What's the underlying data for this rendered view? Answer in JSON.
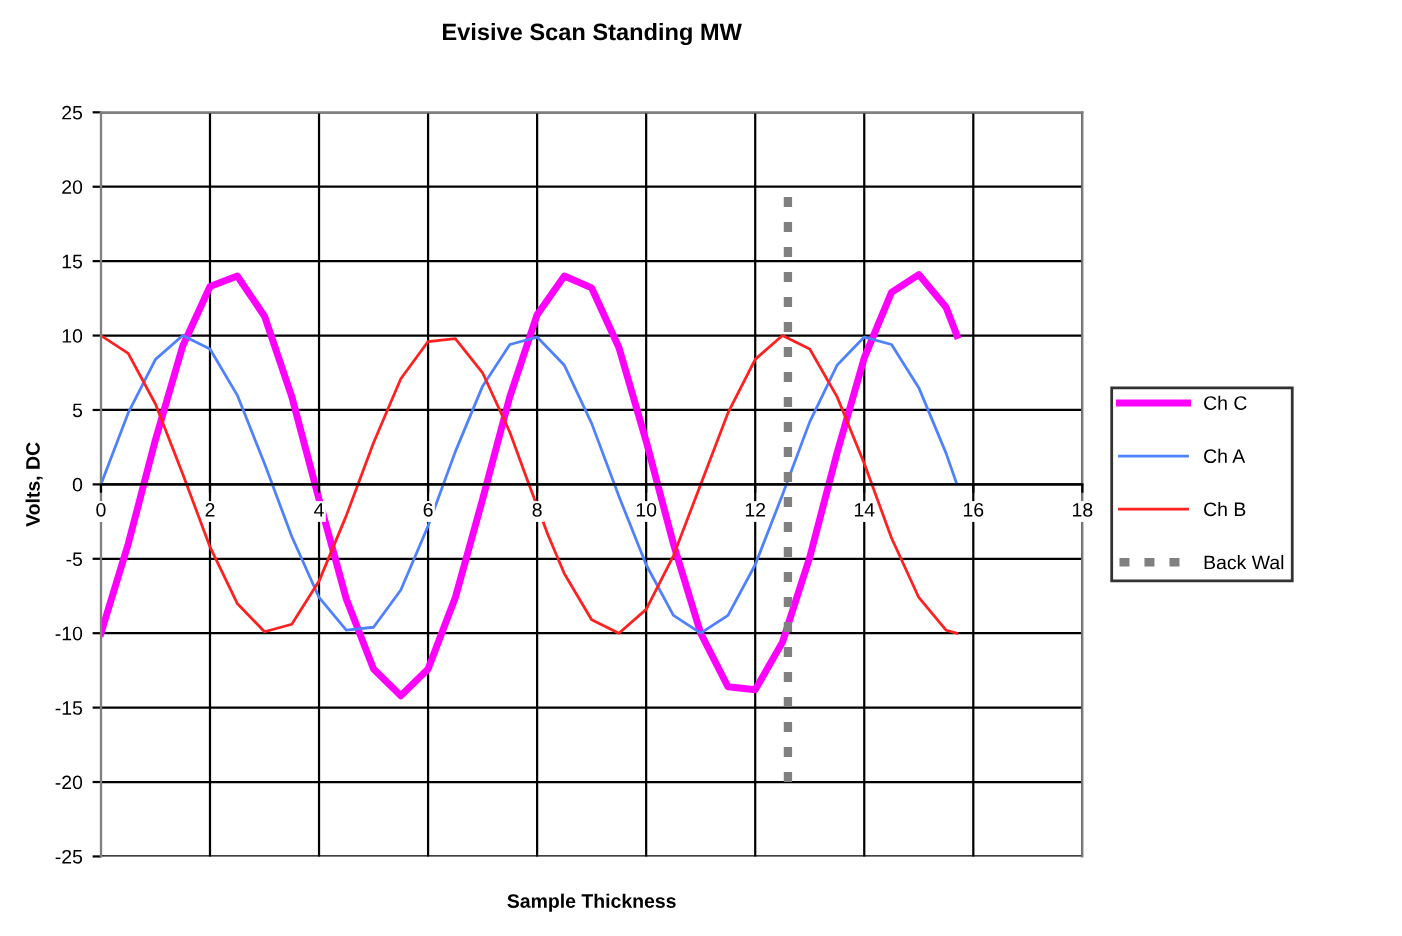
{
  "chart_data": {
    "type": "line",
    "title": "Evisive Scan Standing MW",
    "xlabel": "Sample Thickness",
    "ylabel": "Volts, DC",
    "x": [
      0,
      0.5,
      1,
      1.5,
      2,
      2.5,
      3,
      3.5,
      4,
      4.5,
      5,
      5.5,
      6,
      6.5,
      7,
      7.5,
      8,
      8.5,
      9,
      9.5,
      10,
      10.5,
      11,
      11.5,
      12,
      12.5,
      13,
      13.5,
      14,
      14.5,
      15,
      15.5,
      15.7
    ],
    "series": [
      {
        "name": "Ch C",
        "color": "#ff00ff",
        "values": [
          -10,
          -4.0,
          3.0,
          9.3,
          13.3,
          14.0,
          11.3,
          5.9,
          -1.0,
          -7.7,
          -12.4,
          -14.2,
          -12.4,
          -7.6,
          -1.0,
          5.9,
          11.4,
          14.0,
          13.2,
          9.2,
          2.9,
          -4.0,
          -10.0,
          -13.6,
          -13.8,
          -10.6,
          -4.9,
          2.1,
          8.5,
          12.9,
          14.1,
          11.9,
          10.0
        ]
      },
      {
        "name": "Ch A",
        "color": "#4f81ff",
        "values": [
          0,
          4.8,
          8.4,
          10.0,
          9.1,
          6.0,
          1.4,
          -3.5,
          -7.6,
          -9.8,
          -9.6,
          -7.1,
          -2.8,
          2.2,
          6.6,
          9.4,
          9.9,
          8.0,
          4.1,
          -0.8,
          -5.4,
          -8.8,
          -10.0,
          -8.8,
          -5.4,
          -0.7,
          4.2,
          8.0,
          9.9,
          9.4,
          6.5,
          2.1,
          0
        ]
      },
      {
        "name": "Ch B",
        "color": "#ff2020",
        "x": [
          0,
          0.5,
          1,
          1.5,
          2,
          2.5,
          3,
          3.5,
          4,
          4.5,
          5,
          5.5,
          6,
          6.5,
          7,
          7.5,
          7.8,
          8.2,
          8.5,
          9,
          9.5,
          10,
          10.5,
          11,
          11.5,
          12,
          12.5,
          13,
          13.5,
          14,
          14.5,
          15,
          15.5,
          15.7
        ],
        "values": [
          10,
          8.8,
          5.4,
          0.7,
          -4.2,
          -8.0,
          -9.9,
          -9.4,
          -6.5,
          -2.1,
          2.8,
          7.1,
          9.6,
          9.8,
          7.5,
          3.5,
          0.5,
          -3.4,
          -6.0,
          -9.1,
          -10.0,
          -8.4,
          -4.8,
          0,
          4.8,
          8.4,
          10.0,
          9.1,
          5.9,
          1.4,
          -3.6,
          -7.6,
          -9.8,
          -10
        ]
      },
      {
        "name": "Back Wal",
        "color": "#808080",
        "line_style": "dashed",
        "x": [
          12.6,
          12.6
        ],
        "values": [
          -20,
          20
        ]
      }
    ],
    "xlim": [
      0,
      18
    ],
    "xticks": [
      0,
      2,
      4,
      6,
      8,
      10,
      12,
      14,
      16,
      18
    ],
    "ylim": [
      -25,
      25
    ],
    "yticks": [
      -25,
      -20,
      -15,
      -10,
      -5,
      0,
      5,
      10,
      15,
      20,
      25
    ],
    "grid": true,
    "legend": "right",
    "marker": "none",
    "line_style": "solid"
  }
}
